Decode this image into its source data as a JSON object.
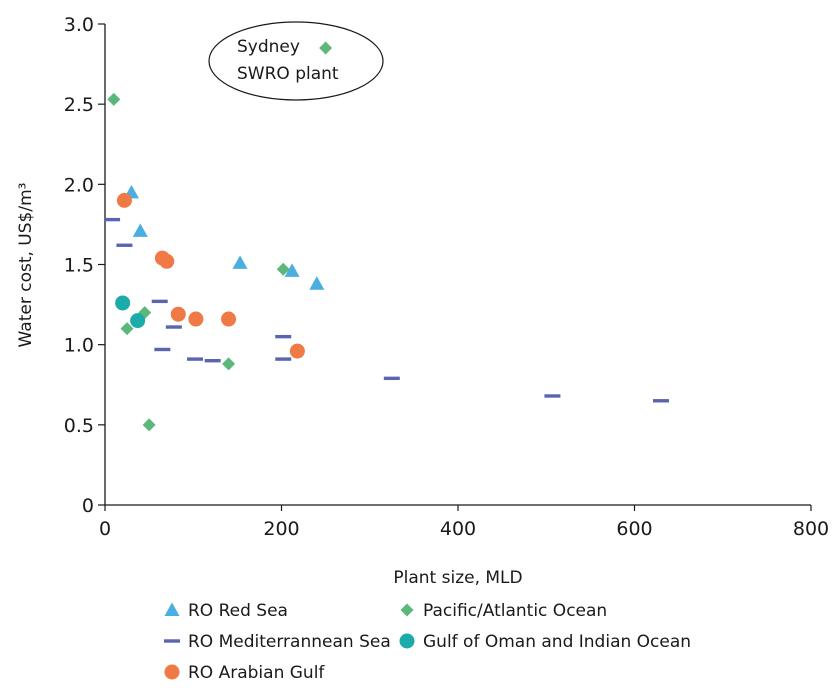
{
  "chart_data": {
    "type": "scatter",
    "title": "",
    "xlabel": "Plant size, MLD",
    "ylabel": "Water cost, US$/m³",
    "xlim": [
      0,
      800
    ],
    "ylim": [
      0,
      3.0
    ],
    "x_ticks": [
      "0",
      "200",
      "400",
      "600",
      "800"
    ],
    "y_ticks": [
      "0",
      "0.5",
      "1.0",
      "1.5",
      "2.0",
      "2.5",
      "3.0"
    ],
    "grid": false,
    "legend_position": "bottom",
    "annotation": {
      "lines": [
        "Sydney",
        "SWRO plant"
      ],
      "marker_series": "Pacific/Atlantic Ocean",
      "marker_point": [
        250,
        2.85
      ]
    },
    "series": [
      {
        "name": "RO Red Sea",
        "marker": "triangle-up",
        "color": "#4aaee0",
        "points": [
          [
            30,
            1.95
          ],
          [
            40,
            1.71
          ],
          [
            153,
            1.51
          ],
          [
            212,
            1.46
          ],
          [
            240,
            1.38
          ]
        ]
      },
      {
        "name": "Pacific/Atlantic Ocean",
        "marker": "diamond",
        "color": "#5cb87a",
        "points": [
          [
            10,
            2.53
          ],
          [
            25,
            1.1
          ],
          [
            45,
            1.2
          ],
          [
            50,
            0.5
          ],
          [
            140,
            0.88
          ],
          [
            202,
            1.47
          ]
        ]
      },
      {
        "name": "RO Mediterrannean Sea",
        "marker": "dash",
        "color": "#5b64b0",
        "points": [
          [
            8,
            1.78
          ],
          [
            22,
            1.62
          ],
          [
            62,
            1.27
          ],
          [
            65,
            0.97
          ],
          [
            78,
            1.11
          ],
          [
            102,
            0.91
          ],
          [
            122,
            0.9
          ],
          [
            202,
            1.05
          ],
          [
            202,
            0.91
          ],
          [
            325,
            0.79
          ],
          [
            507,
            0.68
          ],
          [
            630,
            0.65
          ]
        ]
      },
      {
        "name": "Gulf of Oman and Indian Ocean",
        "marker": "circle",
        "color": "#1aabaa",
        "points": [
          [
            20,
            1.26
          ],
          [
            37,
            1.15
          ]
        ]
      },
      {
        "name": "RO Arabian Gulf",
        "marker": "circle",
        "color": "#f07a45",
        "points": [
          [
            22,
            1.9
          ],
          [
            65,
            1.54
          ],
          [
            70,
            1.52
          ],
          [
            83,
            1.19
          ],
          [
            103,
            1.16
          ],
          [
            140,
            1.16
          ],
          [
            218,
            0.96
          ]
        ]
      }
    ]
  }
}
